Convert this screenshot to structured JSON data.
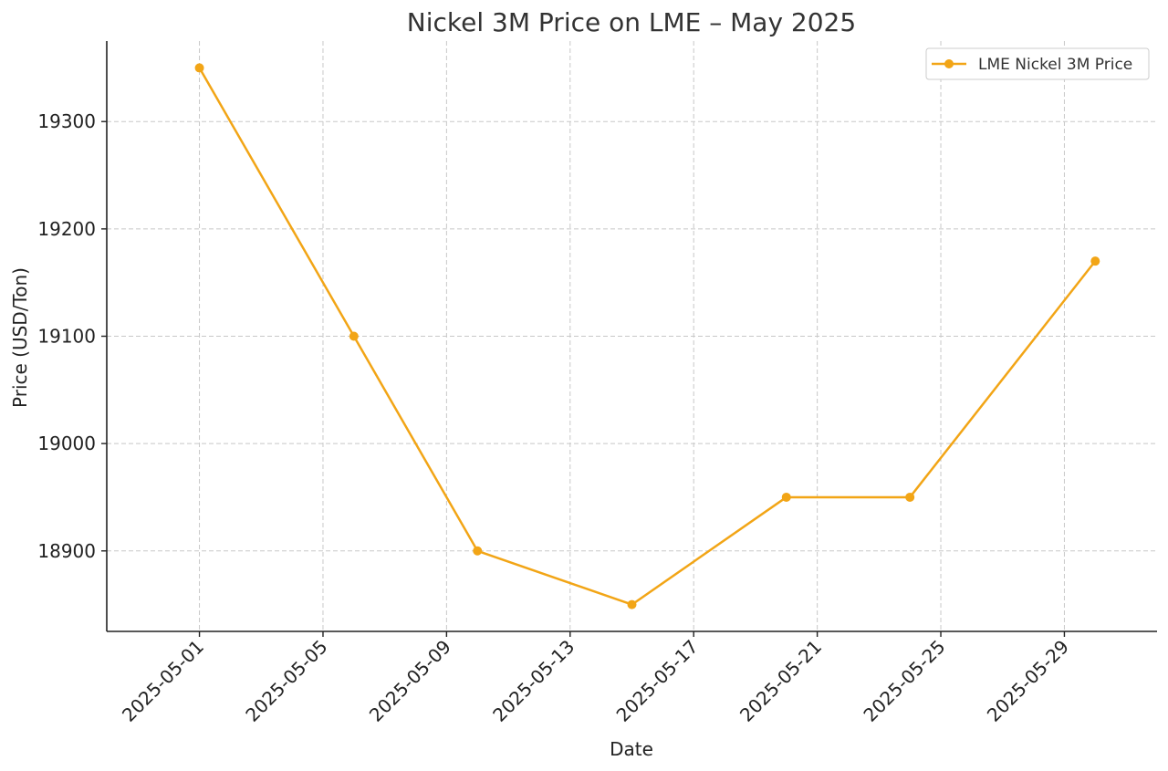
{
  "colors": {
    "series": "#F2A516",
    "grid": "#c8c8c8",
    "axis": "#222222",
    "text": "#333333"
  },
  "chart_data": {
    "type": "line",
    "title": "Nickel 3M Price on LME – May 2025",
    "xlabel": "Date",
    "ylabel": "Price (USD/Ton)",
    "grid": true,
    "legend_position": "top-right",
    "x_axis_type": "date",
    "xlim": [
      "2025-04-28",
      "2025-06-01"
    ],
    "ylim": [
      18825,
      19375
    ],
    "x_ticks": [
      "2025-05-01",
      "2025-05-05",
      "2025-05-09",
      "2025-05-13",
      "2025-05-17",
      "2025-05-21",
      "2025-05-25",
      "2025-05-29"
    ],
    "y_ticks": [
      18900,
      19000,
      19100,
      19200,
      19300
    ],
    "series": [
      {
        "name": "LME Nickel 3M Price",
        "color": "#F2A516",
        "marker": "circle",
        "x": [
          "2025-05-01",
          "2025-05-06",
          "2025-05-10",
          "2025-05-15",
          "2025-05-20",
          "2025-05-24",
          "2025-05-30"
        ],
        "y": [
          19350,
          19100,
          18900,
          18850,
          18950,
          18950,
          19170
        ]
      }
    ]
  }
}
